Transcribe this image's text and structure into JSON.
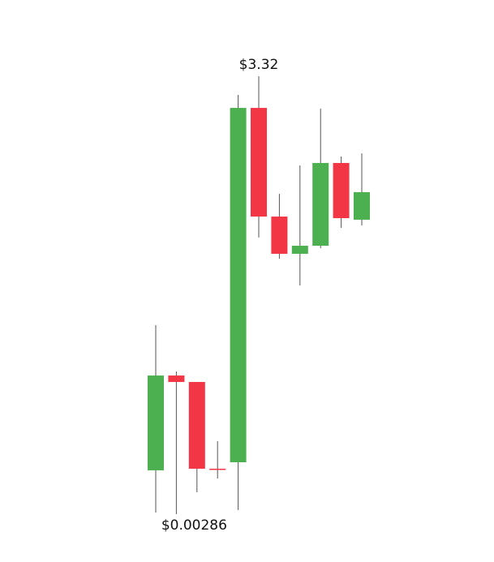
{
  "chart_data": {
    "type": "candlestick",
    "up_color": "#4caf50",
    "down_color": "#f23645",
    "wick_color": "#555555",
    "open": [
      0.335,
      1.053,
      1.004,
      0.347,
      0.396,
      3.08,
      2.257,
      1.975,
      2.036,
      2.663,
      2.233
    ],
    "high": [
      1.434,
      1.084,
      1.004,
      0.556,
      3.179,
      3.32,
      2.429,
      2.644,
      3.074,
      2.712,
      2.736
    ],
    "low": [
      0.015,
      0.00286,
      0.169,
      0.273,
      0.034,
      2.098,
      1.938,
      1.735,
      2.018,
      2.171,
      2.19
    ],
    "close": [
      1.053,
      1.004,
      0.347,
      0.345,
      3.08,
      2.257,
      1.975,
      2.036,
      2.663,
      2.245,
      2.442
    ],
    "annotations": [
      {
        "value": 3.32,
        "label": "$3.32"
      },
      {
        "value": 0.00286,
        "label": "$0.00286"
      }
    ]
  }
}
